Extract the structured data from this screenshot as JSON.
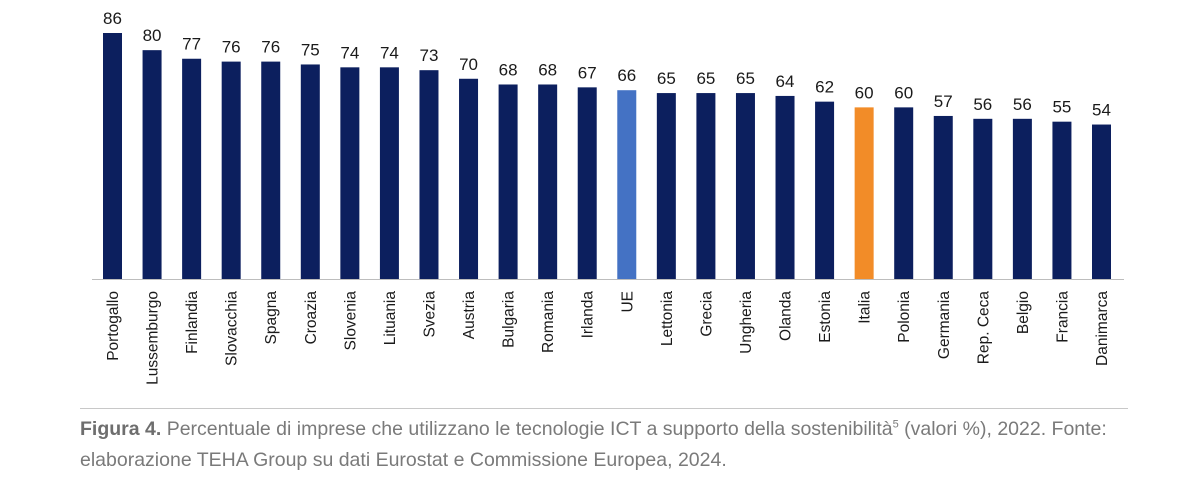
{
  "chart_data": {
    "type": "bar",
    "title": "",
    "xlabel": "",
    "ylabel": "",
    "ylim": [
      0,
      86
    ],
    "grid": false,
    "legend": "none",
    "categories": [
      "Portogallo",
      "Lussemburgo",
      "Finlandia",
      "Slovacchia",
      "Spagna",
      "Croazia",
      "Slovenia",
      "Lituania",
      "Svezia",
      "Austria",
      "Bulgaria",
      "Romania",
      "Irlanda",
      "UE",
      "Lettonia",
      "Grecia",
      "Ungheria",
      "Olanda",
      "Estonia",
      "Italia",
      "Polonia",
      "Germania",
      "Rep. Ceca",
      "Belgio",
      "Francia",
      "Danimarca"
    ],
    "values": [
      86,
      80,
      77,
      76,
      76,
      75,
      74,
      74,
      73,
      70,
      68,
      68,
      67,
      66,
      65,
      65,
      65,
      64,
      62,
      60,
      60,
      57,
      56,
      56,
      55,
      54
    ],
    "colors": {
      "default": "#0c1f5e",
      "UE": "#4472c4",
      "Italia": "#f28c28",
      "label_default": "#1a1a1a",
      "label_Italia": "#f28c28"
    }
  },
  "caption": {
    "figure_label": "Figura 4.",
    "text_before_note": " Percentuale di imprese che utilizzano le tecnologie ICT a supporto della sostenibilità",
    "note_marker": "5",
    "text_after_note": " (valori %), 2022. Fonte: elaborazione TEHA Group su dati Eurostat e Commissione Europea, 2024."
  }
}
